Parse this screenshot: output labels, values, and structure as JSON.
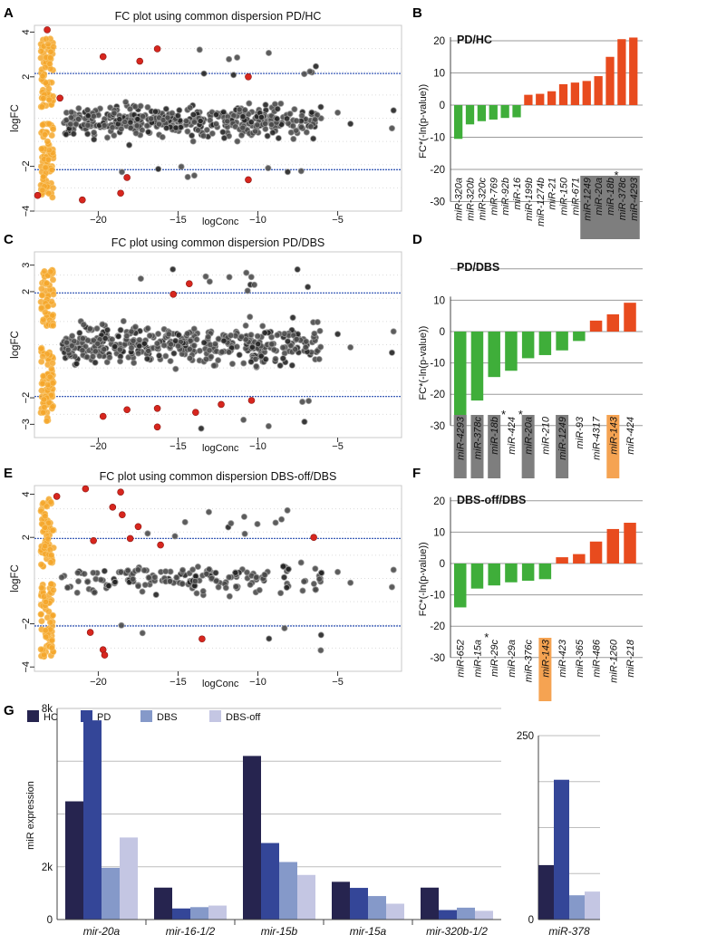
{
  "panel_letters": {
    "A": "A",
    "B": "B",
    "C": "C",
    "D": "D",
    "E": "E",
    "F": "F",
    "G": "G"
  },
  "chart_data": [
    {
      "id": "A",
      "type": "scatter",
      "title": "FC plot using common dispersion PD/HC",
      "xlabel": "logConc",
      "ylabel": "logFC",
      "xlim": [
        -24,
        -1
      ],
      "ylim": [
        -4,
        4.3
      ],
      "xticks": [
        -20,
        -15,
        -10,
        -5
      ],
      "yticks": [
        {
          "v": 4,
          "t": "4"
        },
        {
          "v": 2,
          "t": "2"
        },
        {
          "v": -2,
          "t": "−2"
        },
        {
          "v": -4,
          "t": "−4"
        }
      ],
      "thresholds": [
        2.15,
        -2.15
      ],
      "red_points": [
        [
          -23.2,
          4.1
        ],
        [
          -22.4,
          1.05
        ],
        [
          -19.7,
          2.9
        ],
        [
          -17.4,
          2.7
        ],
        [
          -16.3,
          3.25
        ],
        [
          -10.6,
          2.0
        ],
        [
          -10.6,
          -2.6
        ],
        [
          -18.2,
          -2.5
        ],
        [
          -18.6,
          -3.2
        ],
        [
          -21.0,
          -3.5
        ],
        [
          -23.8,
          -3.3
        ]
      ]
    },
    {
      "id": "B",
      "type": "bar",
      "title": "PD/HC",
      "ylabel": "FC*(-ln(p-value))",
      "ylim": [
        -30,
        22
      ],
      "yticks": [
        20,
        10,
        0,
        -10,
        -20,
        -30
      ],
      "categories": [
        "miR-320a",
        "miR-320b",
        "miR-320c",
        "miR-769",
        "miR-92b",
        "miR-16",
        "miR-199b",
        "miR-1274b",
        "miR-21",
        "miR-150",
        "miR-671",
        "miR-1249",
        "miR-20a",
        "miR-18b",
        "miR-378c",
        "miR-4293"
      ],
      "values": [
        -10.5,
        -6,
        -5,
        -4.5,
        -4,
        -3.8,
        3.2,
        3.5,
        4.3,
        6.5,
        7,
        7.5,
        9,
        15,
        20.5,
        21
      ],
      "highlight": {
        "miR-1249": "gray",
        "miR-20a": "gray",
        "miR-18b": "gray",
        "miR-378c": "gray",
        "miR-4293": "gray"
      },
      "star_after": [
        "miR-18b"
      ],
      "colors": {
        "neg": "#3FAE3A",
        "pos": "#E84B1E"
      }
    },
    {
      "id": "C",
      "type": "scatter",
      "title": "FC plot using common dispersion PD/DBS",
      "xlabel": "logConc",
      "ylabel": "logFC",
      "xlim": [
        -24,
        -1
      ],
      "ylim": [
        -3.5,
        3.5
      ],
      "xticks": [
        -20,
        -15,
        -10,
        -5
      ],
      "yticks": [
        {
          "v": 3,
          "t": "3"
        },
        {
          "v": 2,
          "t": "2"
        },
        {
          "v": -2,
          "t": "−2"
        },
        {
          "v": -3,
          "t": "−3"
        }
      ],
      "thresholds": [
        1.95,
        -1.95
      ],
      "red_points": [
        [
          -15.3,
          1.9
        ],
        [
          -14.3,
          2.3
        ],
        [
          -19.7,
          -2.7
        ],
        [
          -18.2,
          -2.45
        ],
        [
          -16.3,
          -2.4
        ],
        [
          -16.3,
          -3.1
        ],
        [
          -13.9,
          -2.55
        ],
        [
          -10.4,
          -2.1
        ],
        [
          -12.3,
          -2.25
        ]
      ]
    },
    {
      "id": "D",
      "type": "bar",
      "title": "PD/DBS",
      "ylabel": "FC*(-ln(p-value))",
      "ylim": [
        -30,
        22
      ],
      "yticks": [
        10,
        0,
        -10,
        -20,
        -30
      ],
      "categories": [
        "miR-4293",
        "miR-378c",
        "miR-18b",
        "miR-424",
        "miR-20a",
        "miR-210",
        "miR-1249",
        "miR-93",
        "miR-4317",
        "miR-143",
        "miR-424"
      ],
      "values": [
        -28,
        -22,
        -14.5,
        -12.5,
        -8.5,
        -7.5,
        -6,
        -3,
        3.5,
        5.5,
        9.2
      ],
      "highlight": {
        "0": "gray",
        "1": "gray",
        "2": "gray",
        "4": "gray",
        "6": "gray",
        "9": "orange"
      },
      "star_after": [
        "2",
        "3"
      ],
      "colors": {
        "neg": "#3FAE3A",
        "pos": "#E84B1E"
      }
    },
    {
      "id": "E",
      "type": "scatter",
      "title": "FC plot using common dispersion DBS-off/DBS",
      "xlabel": "logConc",
      "ylabel": "logFC",
      "xlim": [
        -24,
        -1
      ],
      "ylim": [
        -4.2,
        4.4
      ],
      "xticks": [
        -20,
        -15,
        -10,
        -5
      ],
      "yticks": [
        {
          "v": 4,
          "t": "4"
        },
        {
          "v": 2,
          "t": "2"
        },
        {
          "v": -2,
          "t": "−2"
        },
        {
          "v": -4,
          "t": "−4"
        }
      ],
      "thresholds": [
        1.95,
        -2.1
      ],
      "red_points": [
        [
          -22.6,
          3.9
        ],
        [
          -20.8,
          4.25
        ],
        [
          -18.6,
          4.1
        ],
        [
          -19.1,
          3.4
        ],
        [
          -18.5,
          3.05
        ],
        [
          -17.5,
          2.5
        ],
        [
          -20.3,
          1.85
        ],
        [
          -18.0,
          1.95
        ],
        [
          -16.1,
          1.65
        ],
        [
          -6.5,
          2.0
        ],
        [
          -20.5,
          -2.4
        ],
        [
          -19.7,
          -3.2
        ],
        [
          -19.6,
          -3.45
        ],
        [
          -13.5,
          -2.7
        ]
      ]
    },
    {
      "id": "F",
      "type": "bar",
      "title": "DBS-off/DBS",
      "ylabel": "FC*(-ln(p-value))",
      "ylim": [
        -30,
        22
      ],
      "yticks": [
        20,
        10,
        0,
        -10,
        -20,
        -30
      ],
      "categories": [
        "miR-652",
        "miR-15a",
        "miR-29c",
        "miR-29a",
        "miR-376c",
        "miR-143",
        "miR-423",
        "miR-365",
        "miR-486",
        "miR-1260",
        "miR-218"
      ],
      "values": [
        -14,
        -8,
        -7,
        -6,
        -5.5,
        -5,
        2,
        3,
        7,
        11,
        13
      ],
      "highlight": {
        "miR-143": "orange"
      },
      "star_after": [
        "miR-15a"
      ],
      "colors": {
        "neg": "#3FAE3A",
        "pos": "#E84B1E"
      }
    },
    {
      "id": "G",
      "type": "bar",
      "ylabel": "miR expression",
      "legend": [
        "HC",
        "PD",
        "DBS",
        "DBS-off"
      ],
      "series_colors": [
        "#26244F",
        "#344698",
        "#8599C9",
        "#C4C6E3"
      ],
      "left": {
        "categories": [
          "mir-20a",
          "mir-16-1/2",
          "mir-15b",
          "mir-15a",
          "mir-320b-1/2"
        ],
        "yticks": [
          {
            "v": 0,
            "t": "0"
          },
          {
            "v": 2000,
            "t": "2k"
          },
          {
            "v": 8000,
            "t": "8k"
          }
        ],
        "ylim": [
          0,
          8000
        ],
        "series": [
          {
            "name": "HC",
            "values": [
              4480,
              1210,
              6200,
              1430,
              1210
            ]
          },
          {
            "name": "PD",
            "values": [
              7550,
              420,
              2900,
              1200,
              360
            ]
          },
          {
            "name": "DBS",
            "values": [
              1960,
              470,
              2180,
              890,
              450
            ]
          },
          {
            "name": "DBS-off",
            "values": [
              3110,
              530,
              1690,
              600,
              330
            ]
          }
        ]
      },
      "right": {
        "categories": [
          "miR-378"
        ],
        "yticks": [
          {
            "v": 0,
            "t": "0"
          },
          {
            "v": 250,
            "t": "250"
          }
        ],
        "ylim": [
          0,
          250
        ],
        "series": [
          {
            "name": "HC",
            "values": [
              74
            ]
          },
          {
            "name": "PD",
            "values": [
              190
            ]
          },
          {
            "name": "DBS",
            "values": [
              33
            ]
          },
          {
            "name": "DBS-off",
            "values": [
              38
            ]
          }
        ]
      }
    }
  ]
}
